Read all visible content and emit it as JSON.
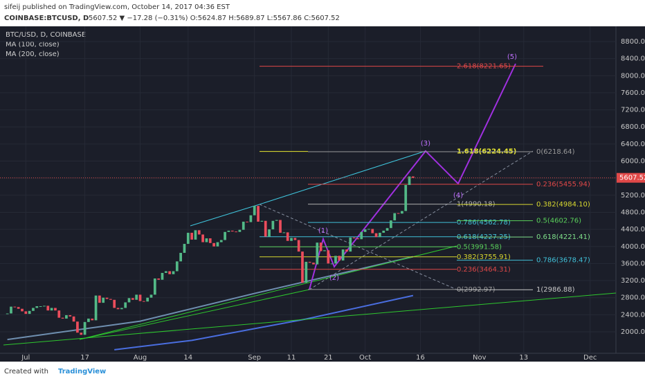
{
  "chart_data": {
    "type": "candlestick",
    "header": "sifeij published on TradingView.com, October 14, 2017 04:36 EST",
    "symbol": "COINBASE:BTCUSD, D",
    "quote": "5607.52 ▼ −17.28 (−0.31%) O:5624.87 H:5689.87 L:5567.86 C:5607.52",
    "legend_title": "BTC/USD, D, COINBASE",
    "last_price": 5607.52,
    "last_price_label": "5607.52",
    "footer": "Created with",
    "brand": "TradingView",
    "up_color": "#53b987",
    "down_color": "#eb4d5c",
    "x": [
      "2017-06-26",
      "2017-06-27",
      "2017-06-28",
      "2017-06-29",
      "2017-06-30",
      "2017-07-01",
      "2017-07-02",
      "2017-07-03",
      "2017-07-04",
      "2017-07-05",
      "2017-07-06",
      "2017-07-07",
      "2017-07-08",
      "2017-07-09",
      "2017-07-10",
      "2017-07-11",
      "2017-07-12",
      "2017-07-13",
      "2017-07-14",
      "2017-07-15",
      "2017-07-16",
      "2017-07-17",
      "2017-07-18",
      "2017-07-19",
      "2017-07-20",
      "2017-07-21",
      "2017-07-22",
      "2017-07-23",
      "2017-07-24",
      "2017-07-25",
      "2017-07-26",
      "2017-07-27",
      "2017-07-28",
      "2017-07-29",
      "2017-07-30",
      "2017-07-31",
      "2017-08-01",
      "2017-08-02",
      "2017-08-03",
      "2017-08-04",
      "2017-08-05",
      "2017-08-06",
      "2017-08-07",
      "2017-08-08",
      "2017-08-09",
      "2017-08-10",
      "2017-08-11",
      "2017-08-12",
      "2017-08-13",
      "2017-08-14",
      "2017-08-15",
      "2017-08-16",
      "2017-08-17",
      "2017-08-18",
      "2017-08-19",
      "2017-08-20",
      "2017-08-21",
      "2017-08-22",
      "2017-08-23",
      "2017-08-24",
      "2017-08-25",
      "2017-08-26",
      "2017-08-27",
      "2017-08-28",
      "2017-08-29",
      "2017-08-30",
      "2017-08-31",
      "2017-09-01",
      "2017-09-02",
      "2017-09-03",
      "2017-09-04",
      "2017-09-05",
      "2017-09-06",
      "2017-09-07",
      "2017-09-08",
      "2017-09-09",
      "2017-09-10",
      "2017-09-11",
      "2017-09-12",
      "2017-09-13",
      "2017-09-14",
      "2017-09-15",
      "2017-09-16",
      "2017-09-17",
      "2017-09-18",
      "2017-09-19",
      "2017-09-20",
      "2017-09-21",
      "2017-09-22",
      "2017-09-23",
      "2017-09-24",
      "2017-09-25",
      "2017-09-26",
      "2017-09-27",
      "2017-09-28",
      "2017-09-29",
      "2017-09-30",
      "2017-10-01",
      "2017-10-02",
      "2017-10-03",
      "2017-10-04",
      "2017-10-05",
      "2017-10-06",
      "2017-10-07",
      "2017-10-08",
      "2017-10-09",
      "2017-10-10",
      "2017-10-11",
      "2017-10-12",
      "2017-10-13",
      "2017-10-14"
    ],
    "close": [
      2430,
      2590,
      2580,
      2540,
      2480,
      2420,
      2490,
      2560,
      2600,
      2600,
      2610,
      2500,
      2560,
      2500,
      2330,
      2310,
      2390,
      2360,
      2240,
      1980,
      1930,
      2230,
      2310,
      2270,
      2850,
      2680,
      2800,
      2770,
      2750,
      2560,
      2530,
      2560,
      2690,
      2790,
      2750,
      2870,
      2720,
      2710,
      2800,
      2870,
      3250,
      3220,
      3380,
      3420,
      3350,
      3420,
      3650,
      3850,
      4060,
      4320,
      4160,
      4380,
      4280,
      4100,
      4190,
      4080,
      4000,
      4100,
      4150,
      4340,
      4370,
      4350,
      4340,
      4390,
      4580,
      4570,
      4730,
      4950,
      4580,
      4600,
      4230,
      4400,
      4600,
      4620,
      4320,
      4330,
      4130,
      4200,
      4150,
      3880,
      3150,
      3640,
      3620,
      3580,
      4090,
      3890,
      3910,
      3600,
      3600,
      3780,
      3670,
      3930,
      3880,
      4210,
      4190,
      4170,
      4340,
      4400,
      4410,
      4310,
      4220,
      4320,
      4370,
      4430,
      4610,
      4780,
      4770,
      4830,
      5440,
      5640,
      5607.52
    ],
    "moving_averages": [
      {
        "name": "MA (100, close)",
        "color": "#6f8fb0",
        "x": [
          "2017-06-26",
          "2017-08-01",
          "2017-09-01",
          "2017-10-14"
        ],
        "values": [
          1820,
          2250,
          2900,
          3760
        ]
      },
      {
        "name": "MA (200, close)",
        "color": "#4a6ee0",
        "x": [
          "2017-07-25",
          "2017-08-15",
          "2017-09-15",
          "2017-10-14"
        ],
        "values": [
          1580,
          1800,
          2300,
          2850
        ]
      }
    ],
    "fib_levels": [
      {
        "label": "2.618(8221.65)",
        "value": 8221.65,
        "color": "#e04848"
      },
      {
        "label": "1.618(6224.45)",
        "value": 6224.45,
        "color": "#e8e830"
      },
      {
        "label": "0(6218.64)",
        "value": 6218.64,
        "color": "#9a9a9a"
      },
      {
        "label": "0.236(5455.94)",
        "value": 5455.94,
        "color": "#e04848"
      },
      {
        "label": "1(4990.18)",
        "value": 4990.18,
        "color": "#b0b0b0"
      },
      {
        "label": "0.382(4984.10)",
        "value": 4984.1,
        "color": "#d8d830"
      },
      {
        "label": "0.786(4562.78)",
        "value": 4562.78,
        "color": "#40c0d8"
      },
      {
        "label": "0.5(4602.76)",
        "value": 4602.76,
        "color": "#5ad05a"
      },
      {
        "label": "0.618(4227.25)",
        "value": 4227.25,
        "color": "#40c0d8"
      },
      {
        "label": "0.618(4221.41)",
        "value": 4221.41,
        "color": "#7fe08a"
      },
      {
        "label": "0.5(3991.58)",
        "value": 3991.58,
        "color": "#5ad05a"
      },
      {
        "label": "0.382(3755.91)",
        "value": 3755.91,
        "color": "#d8d830"
      },
      {
        "label": "0.786(3678.47)",
        "value": 3678.47,
        "color": "#40c0d8"
      },
      {
        "label": "0.236(3464.31)",
        "value": 3464.31,
        "color": "#e04848"
      },
      {
        "label": "0(2992.97)",
        "value": 2992.97,
        "color": "#9a9a9a"
      },
      {
        "label": "1(2986.88)",
        "value": 2986.88,
        "color": "#c8c8c8"
      }
    ],
    "waves": [
      "(1)",
      "(2)",
      "(3)",
      "(4)",
      "(5)"
    ],
    "xlim": [
      "2017-06-24",
      "2017-12-08"
    ],
    "xticks": [
      {
        "value": "2017-07-01",
        "label": "Jul"
      },
      {
        "value": "2017-07-17",
        "label": "17"
      },
      {
        "value": "2017-08-01",
        "label": "Aug"
      },
      {
        "value": "2017-08-14",
        "label": "14"
      },
      {
        "value": "2017-09-01",
        "label": "Sep"
      },
      {
        "value": "2017-09-11",
        "label": "11"
      },
      {
        "value": "2017-09-21",
        "label": "21"
      },
      {
        "value": "2017-10-01",
        "label": "Oct"
      },
      {
        "value": "2017-10-16",
        "label": "16"
      },
      {
        "value": "2017-11-01",
        "label": "Nov"
      },
      {
        "value": "2017-11-13",
        "label": "13"
      },
      {
        "value": "2017-12-01",
        "label": "Dec"
      }
    ],
    "ylim": [
      1497,
      9124
    ],
    "yticks": [
      {
        "value": 2000,
        "label": "2000.00"
      },
      {
        "value": 2400,
        "label": "2400.00"
      },
      {
        "value": 2800,
        "label": "2800.00"
      },
      {
        "value": 3200,
        "label": "3200.00"
      },
      {
        "value": 3600,
        "label": "3600.00"
      },
      {
        "value": 4000,
        "label": "4000.00"
      },
      {
        "value": 4400,
        "label": "4400.00"
      },
      {
        "value": 4800,
        "label": "4800.00"
      },
      {
        "value": 5200,
        "label": "5200.00"
      },
      {
        "value": 5600,
        "label": "5600.00"
      },
      {
        "value": 6000,
        "label": "6000.00"
      },
      {
        "value": 6400,
        "label": "6400.00"
      },
      {
        "value": 6800,
        "label": "6800.00"
      },
      {
        "value": 7200,
        "label": "7200.00"
      },
      {
        "value": 7600,
        "label": "7600.00"
      },
      {
        "value": 8000,
        "label": "8000.00"
      },
      {
        "value": 8400,
        "label": "8400.00"
      },
      {
        "value": 8800,
        "label": "8800.00"
      }
    ],
    "grid": true
  }
}
